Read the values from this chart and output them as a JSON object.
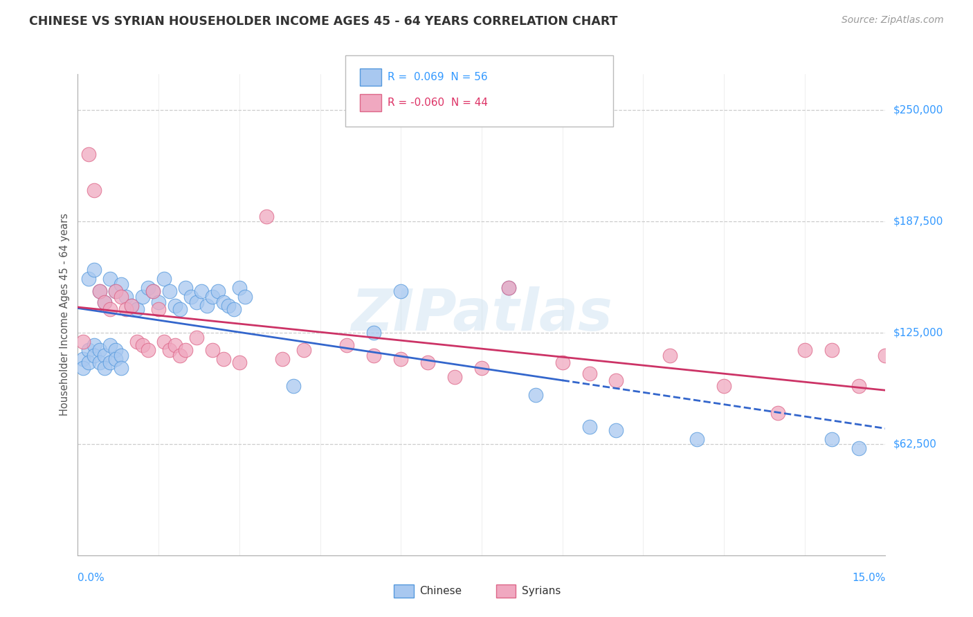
{
  "title": "CHINESE VS SYRIAN HOUSEHOLDER INCOME AGES 45 - 64 YEARS CORRELATION CHART",
  "source": "Source: ZipAtlas.com",
  "ylabel": "Householder Income Ages 45 - 64 years",
  "y_tick_labels": [
    "$62,500",
    "$125,000",
    "$187,500",
    "$250,000"
  ],
  "y_tick_values": [
    62500,
    125000,
    187500,
    250000
  ],
  "ylim": [
    0,
    270000
  ],
  "xlim": [
    0.0,
    0.15
  ],
  "legend_chinese_text": "R =  0.069  N = 56",
  "legend_syrians_text": "R = -0.060  N = 44",
  "chinese_color": "#a8c8f0",
  "syrian_color": "#f0a8c0",
  "chinese_edge_color": "#5599dd",
  "syrian_edge_color": "#dd6688",
  "chinese_line_color": "#3366cc",
  "syrian_line_color": "#cc3366",
  "watermark": "ZIPatlas",
  "chinese_x": [
    0.002,
    0.003,
    0.004,
    0.005,
    0.006,
    0.007,
    0.008,
    0.009,
    0.01,
    0.011,
    0.012,
    0.013,
    0.014,
    0.015,
    0.016,
    0.017,
    0.018,
    0.019,
    0.02,
    0.021,
    0.022,
    0.023,
    0.024,
    0.025,
    0.026,
    0.027,
    0.028,
    0.029,
    0.03,
    0.031,
    0.001,
    0.001,
    0.002,
    0.002,
    0.003,
    0.003,
    0.004,
    0.004,
    0.005,
    0.005,
    0.006,
    0.006,
    0.007,
    0.007,
    0.008,
    0.008,
    0.04,
    0.055,
    0.06,
    0.08,
    0.085,
    0.095,
    0.1,
    0.115,
    0.14,
    0.145
  ],
  "chinese_y": [
    155000,
    160000,
    148000,
    142000,
    155000,
    148000,
    152000,
    145000,
    140000,
    138000,
    145000,
    150000,
    148000,
    142000,
    155000,
    148000,
    140000,
    138000,
    150000,
    145000,
    142000,
    148000,
    140000,
    145000,
    148000,
    142000,
    140000,
    138000,
    150000,
    145000,
    110000,
    105000,
    115000,
    108000,
    118000,
    112000,
    115000,
    108000,
    112000,
    105000,
    118000,
    108000,
    115000,
    110000,
    112000,
    105000,
    95000,
    125000,
    148000,
    150000,
    90000,
    72000,
    70000,
    65000,
    65000,
    60000
  ],
  "syrian_x": [
    0.001,
    0.002,
    0.003,
    0.004,
    0.005,
    0.006,
    0.007,
    0.008,
    0.009,
    0.01,
    0.011,
    0.012,
    0.013,
    0.014,
    0.015,
    0.016,
    0.017,
    0.018,
    0.019,
    0.02,
    0.022,
    0.025,
    0.027,
    0.03,
    0.035,
    0.038,
    0.042,
    0.05,
    0.055,
    0.06,
    0.065,
    0.07,
    0.075,
    0.08,
    0.09,
    0.095,
    0.1,
    0.11,
    0.12,
    0.13,
    0.135,
    0.14,
    0.145,
    0.15
  ],
  "syrian_y": [
    120000,
    225000,
    205000,
    148000,
    142000,
    138000,
    148000,
    145000,
    138000,
    140000,
    120000,
    118000,
    115000,
    148000,
    138000,
    120000,
    115000,
    118000,
    112000,
    115000,
    122000,
    115000,
    110000,
    108000,
    190000,
    110000,
    115000,
    118000,
    112000,
    110000,
    108000,
    100000,
    105000,
    150000,
    108000,
    102000,
    98000,
    112000,
    95000,
    80000,
    115000,
    115000,
    95000,
    112000
  ]
}
